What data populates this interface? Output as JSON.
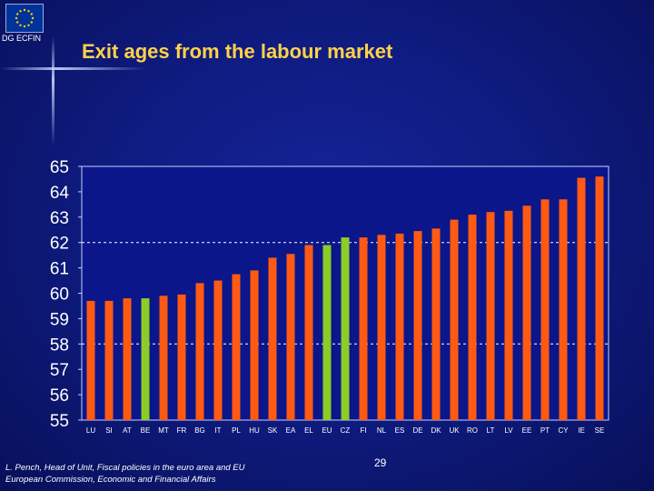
{
  "header": {
    "org_label": "DG ECFIN",
    "title": "Exit ages from the labour market"
  },
  "colors": {
    "bar_orange": "#ff5a14",
    "bar_green": "#8ccc28",
    "title_yellow": "#ffd24a"
  },
  "chart_data": {
    "type": "bar",
    "title": "Exit ages from the labour market",
    "xlabel": "",
    "ylabel": "",
    "ylim": [
      55,
      65
    ],
    "yticks": [
      65,
      64,
      63,
      62,
      61,
      60,
      59,
      58,
      57,
      56,
      55
    ],
    "reference_lines": [
      62,
      58
    ],
    "categories": [
      "LU",
      "SI",
      "AT",
      "BE",
      "MT",
      "FR",
      "BG",
      "IT",
      "PL",
      "HU",
      "SK",
      "EA",
      "EL",
      "EU",
      "CZ",
      "FI",
      "NL",
      "ES",
      "DE",
      "DK",
      "UK",
      "RO",
      "LT",
      "LV",
      "EE",
      "PT",
      "CY",
      "IE",
      "SE"
    ],
    "values": [
      59.7,
      59.7,
      59.8,
      59.8,
      59.9,
      59.95,
      60.4,
      60.5,
      60.75,
      60.9,
      61.4,
      61.55,
      61.9,
      61.9,
      62.2,
      62.2,
      62.3,
      62.35,
      62.45,
      62.55,
      62.9,
      63.1,
      63.2,
      63.25,
      63.45,
      63.7,
      63.7,
      64.55,
      64.6
    ],
    "highlight": [
      "BE",
      "EU",
      "CZ"
    ]
  },
  "footer": {
    "line1": "L. Pench, Head of Unit, Fiscal policies in the euro area and EU",
    "line2": "European Commission, Economic and Financial Affairs",
    "page_number": "29"
  }
}
